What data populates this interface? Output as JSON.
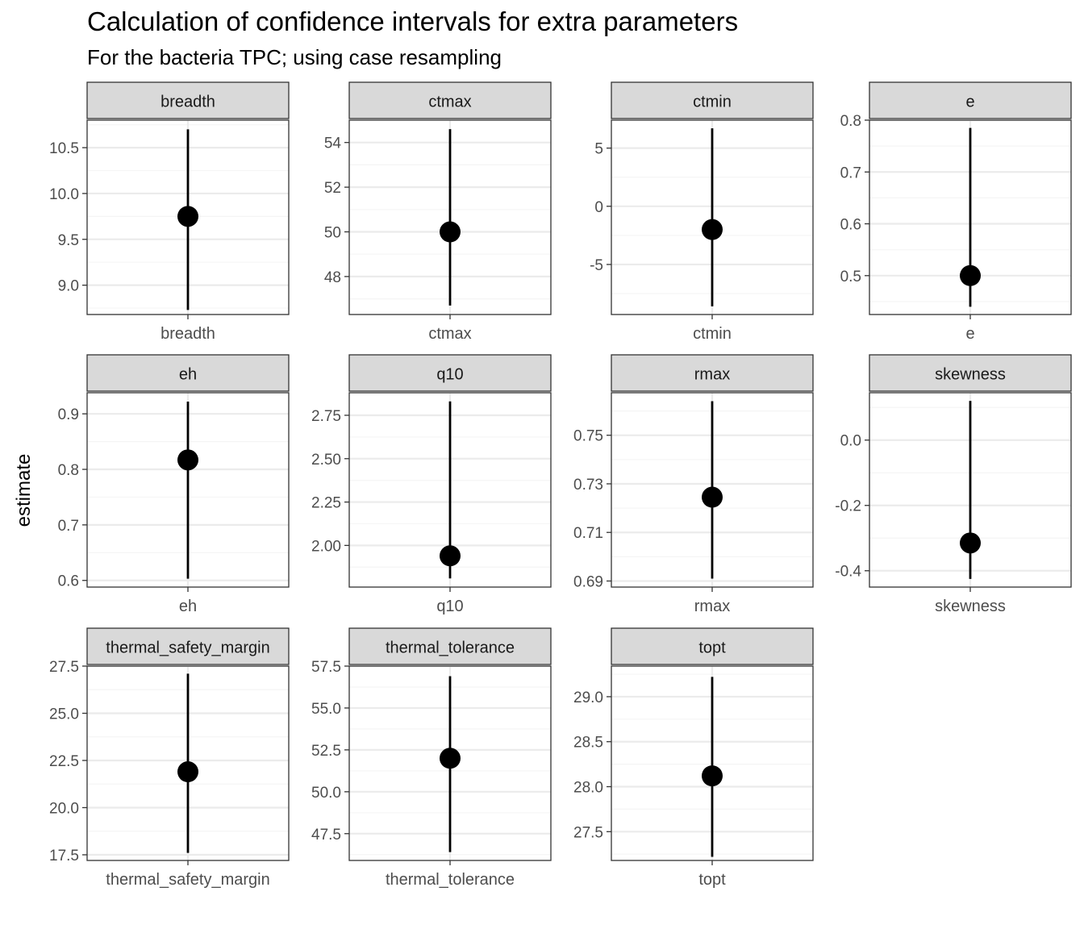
{
  "title": "Calculation of confidence intervals for extra parameters",
  "subtitle": "For the bacteria TPC; using case resampling",
  "chart_data": {
    "type": "pointrange",
    "ylabel": "estimate",
    "facets": [
      {
        "label": "breadth",
        "x_tick": "breadth",
        "estimate": 9.75,
        "conf_lower": 8.73,
        "conf_upper": 10.7,
        "ylim": [
          8.68,
          10.8
        ],
        "y_ticks": [
          9.0,
          9.5,
          10.0,
          10.5
        ],
        "y_tick_labels": [
          "9.0",
          "9.5",
          "10.0",
          "10.5"
        ]
      },
      {
        "label": "ctmax",
        "x_tick": "ctmax",
        "estimate": 50.0,
        "conf_lower": 46.7,
        "conf_upper": 54.6,
        "ylim": [
          46.3,
          55.0
        ],
        "y_ticks": [
          48,
          50,
          52,
          54
        ],
        "y_tick_labels": [
          "48",
          "50",
          "52",
          "54"
        ]
      },
      {
        "label": "ctmin",
        "x_tick": "ctmin",
        "estimate": -2.0,
        "conf_lower": -8.6,
        "conf_upper": 6.7,
        "ylim": [
          -9.3,
          7.4
        ],
        "y_ticks": [
          -5,
          0,
          5
        ],
        "y_tick_labels": [
          "-5",
          "0",
          "5"
        ]
      },
      {
        "label": "e",
        "x_tick": "e",
        "estimate": 0.5,
        "conf_lower": 0.44,
        "conf_upper": 0.785,
        "ylim": [
          0.425,
          0.8
        ],
        "y_ticks": [
          0.5,
          0.6,
          0.7,
          0.8
        ],
        "y_tick_labels": [
          "0.5",
          "0.6",
          "0.7",
          "0.8"
        ]
      },
      {
        "label": "eh",
        "x_tick": "eh",
        "estimate": 0.817,
        "conf_lower": 0.603,
        "conf_upper": 0.922,
        "ylim": [
          0.588,
          0.938
        ],
        "y_ticks": [
          0.6,
          0.7,
          0.8,
          0.9
        ],
        "y_tick_labels": [
          "0.6",
          "0.7",
          "0.8",
          "0.9"
        ]
      },
      {
        "label": "q10",
        "x_tick": "q10",
        "estimate": 1.94,
        "conf_lower": 1.81,
        "conf_upper": 2.83,
        "ylim": [
          1.76,
          2.88
        ],
        "y_ticks": [
          2.0,
          2.25,
          2.5,
          2.75
        ],
        "y_tick_labels": [
          "2.00",
          "2.25",
          "2.50",
          "2.75"
        ]
      },
      {
        "label": "rmax",
        "x_tick": "rmax",
        "estimate": 0.7245,
        "conf_lower": 0.691,
        "conf_upper": 0.764,
        "ylim": [
          0.6875,
          0.7675
        ],
        "y_ticks": [
          0.69,
          0.71,
          0.73,
          0.75
        ],
        "y_tick_labels": [
          "0.69",
          "0.71",
          "0.73",
          "0.75"
        ]
      },
      {
        "label": "skewness",
        "x_tick": "skewness",
        "estimate": -0.315,
        "conf_lower": -0.425,
        "conf_upper": 0.12,
        "ylim": [
          -0.45,
          0.145
        ],
        "y_ticks": [
          -0.4,
          -0.2,
          0.0
        ],
        "y_tick_labels": [
          "-0.4",
          "-0.2",
          "0.0"
        ]
      },
      {
        "label": "thermal_safety_margin",
        "x_tick": "thermal_safety_margin",
        "estimate": 21.9,
        "conf_lower": 17.6,
        "conf_upper": 27.1,
        "ylim": [
          17.2,
          27.5
        ],
        "y_ticks": [
          17.5,
          20.0,
          22.5,
          25.0,
          27.5
        ],
        "y_tick_labels": [
          "17.5",
          "20.0",
          "22.5",
          "25.0",
          "27.5"
        ]
      },
      {
        "label": "thermal_tolerance",
        "x_tick": "thermal_tolerance",
        "estimate": 52.0,
        "conf_lower": 46.4,
        "conf_upper": 56.9,
        "ylim": [
          45.9,
          57.5
        ],
        "y_ticks": [
          47.5,
          50.0,
          52.5,
          55.0,
          57.5
        ],
        "y_tick_labels": [
          "47.5",
          "50.0",
          "52.5",
          "55.0",
          "57.5"
        ]
      },
      {
        "label": "topt",
        "x_tick": "topt",
        "estimate": 28.12,
        "conf_lower": 27.22,
        "conf_upper": 29.22,
        "ylim": [
          27.18,
          29.34
        ],
        "y_ticks": [
          27.5,
          28.0,
          28.5,
          29.0
        ],
        "y_tick_labels": [
          "27.5",
          "28.0",
          "28.5",
          "29.0"
        ]
      }
    ],
    "grid": true,
    "colors": {
      "point": "#000000",
      "strip_fill": "#d9d9d9",
      "panel_border": "#333333",
      "grid_major": "#ebebeb",
      "grid_minor": "#f5f5f5",
      "tick_text": "#4d4d4d"
    }
  }
}
